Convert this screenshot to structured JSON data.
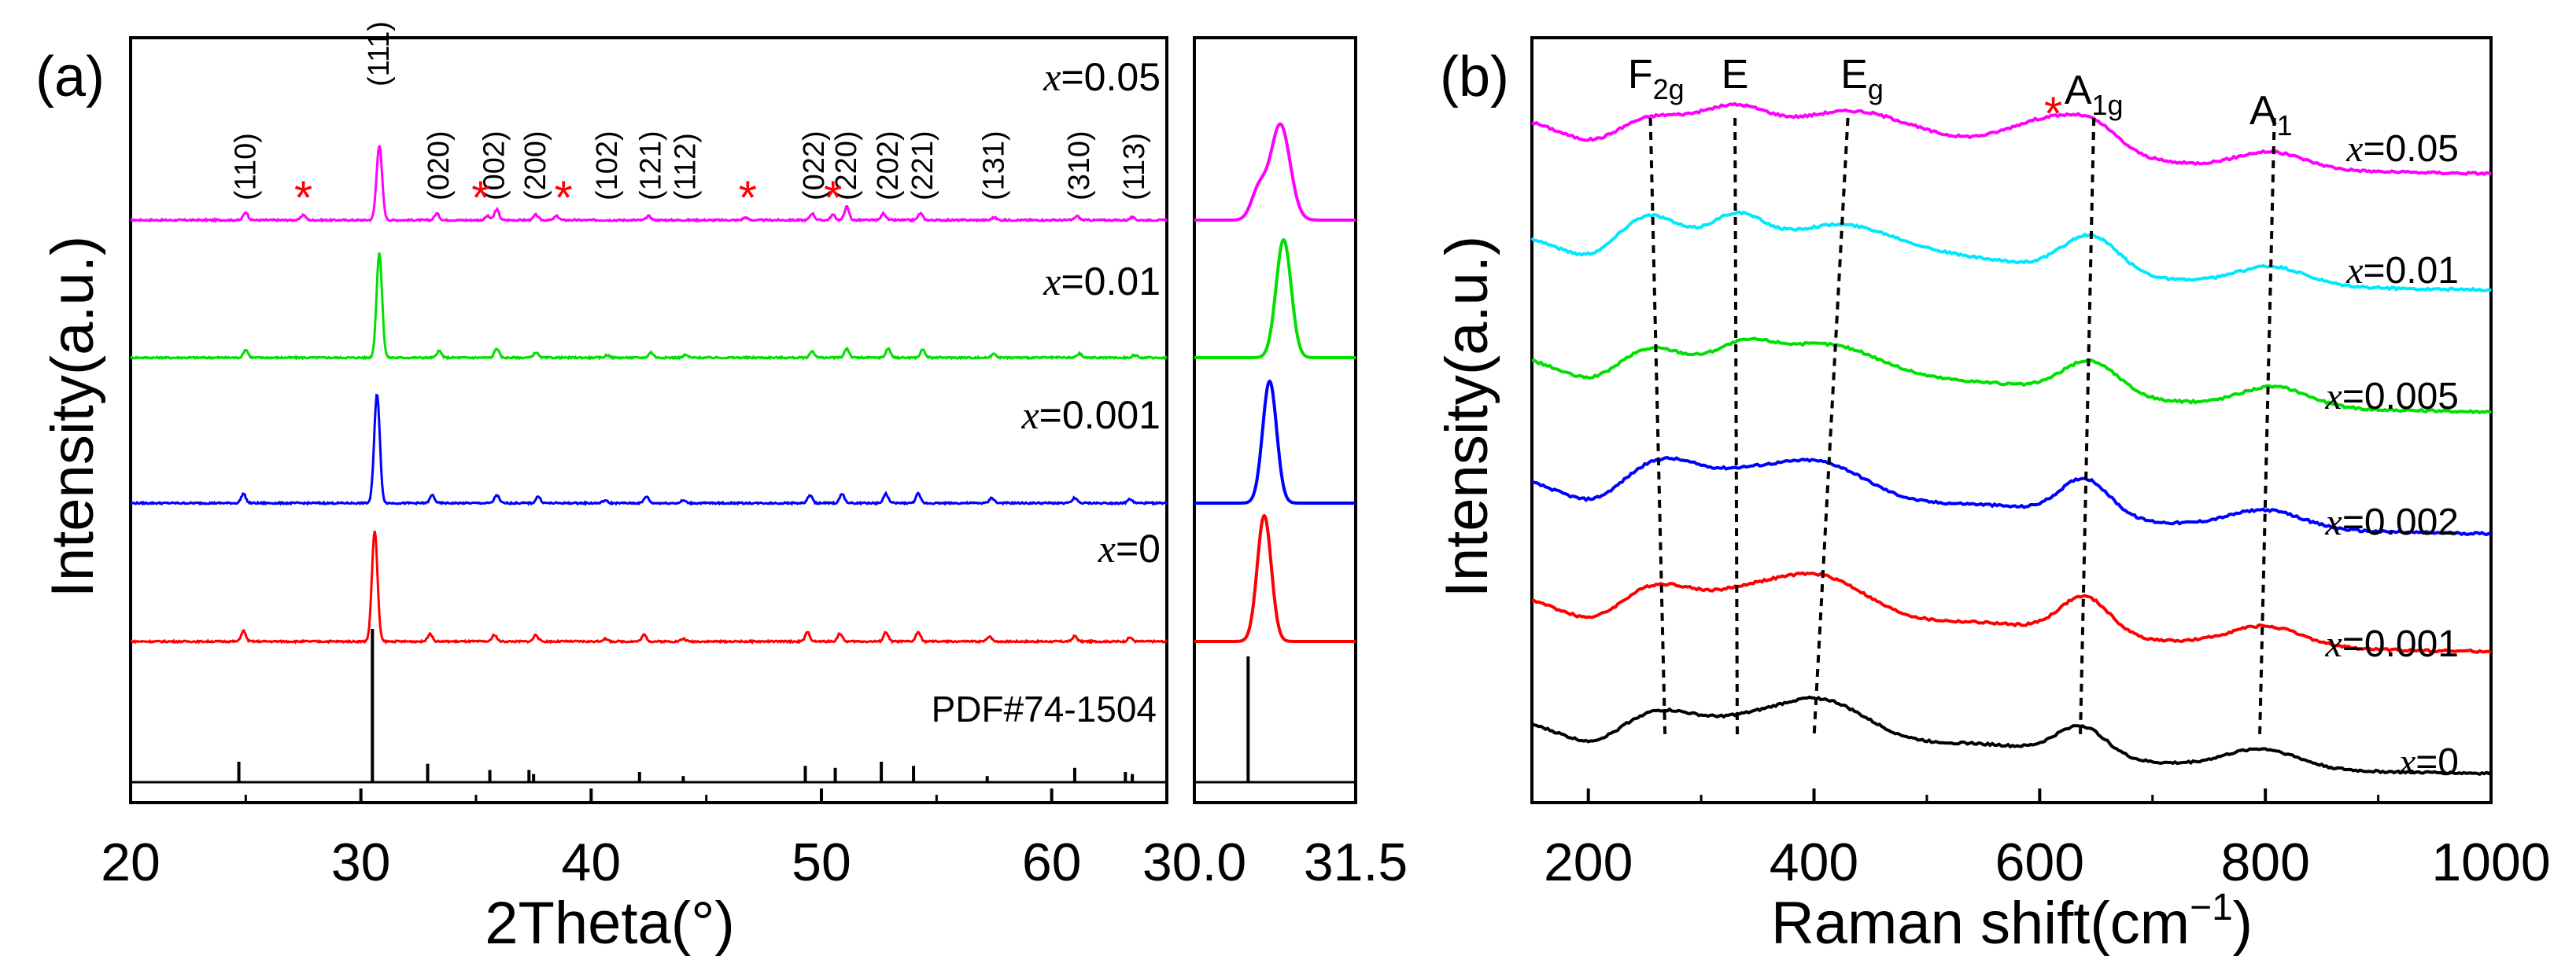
{
  "chart_data": [
    {
      "id": "xrd",
      "type": "line",
      "panel_label": "(a)",
      "xlabel": "2Theta(°)",
      "ylabel": "Intensity(a.u.)",
      "xlim": [
        20,
        65
      ],
      "xticks": [
        20,
        30,
        40,
        50,
        60
      ],
      "x_var": "x",
      "series": [
        {
          "name": "x=0.05",
          "value": "=0.05",
          "color": "#ff00ff",
          "peaks": [
            [
              25.0,
              0.06
            ],
            [
              27.5,
              0.04
            ],
            [
              30.8,
              0.56
            ],
            [
              33.3,
              0.05
            ],
            [
              35.5,
              0.03
            ],
            [
              35.9,
              0.08
            ],
            [
              37.6,
              0.04
            ],
            [
              38.5,
              0.03
            ],
            [
              42.5,
              0.03
            ],
            [
              46.7,
              0.02
            ],
            [
              49.6,
              0.05
            ],
            [
              50.5,
              0.04
            ],
            [
              51.1,
              0.1
            ],
            [
              52.7,
              0.05
            ],
            [
              54.3,
              0.05
            ],
            [
              57.5,
              0.02
            ],
            [
              61.1,
              0.03
            ],
            [
              63.5,
              0.02
            ]
          ]
        },
        {
          "name": "x=0.01",
          "value": "=0.01",
          "color": "#00e000",
          "peaks": [
            [
              25.0,
              0.06
            ],
            [
              30.8,
              0.78
            ],
            [
              33.4,
              0.05
            ],
            [
              35.9,
              0.07
            ],
            [
              37.6,
              0.04
            ],
            [
              40.7,
              0.02
            ],
            [
              42.6,
              0.04
            ],
            [
              44.1,
              0.02
            ],
            [
              49.6,
              0.05
            ],
            [
              51.1,
              0.07
            ],
            [
              52.9,
              0.07
            ],
            [
              54.4,
              0.06
            ],
            [
              57.5,
              0.03
            ],
            [
              61.2,
              0.03
            ],
            [
              63.6,
              0.02
            ]
          ]
        },
        {
          "name": "x=0.001",
          "value": "=0.001",
          "color": "#0000ff",
          "peaks": [
            [
              24.9,
              0.07
            ],
            [
              30.7,
              0.82
            ],
            [
              33.1,
              0.06
            ],
            [
              35.9,
              0.06
            ],
            [
              37.7,
              0.05
            ],
            [
              40.6,
              0.02
            ],
            [
              42.4,
              0.05
            ],
            [
              44.0,
              0.02
            ],
            [
              49.5,
              0.06
            ],
            [
              50.9,
              0.07
            ],
            [
              52.8,
              0.07
            ],
            [
              54.2,
              0.07
            ],
            [
              57.4,
              0.04
            ],
            [
              61.0,
              0.04
            ],
            [
              63.4,
              0.03
            ]
          ]
        },
        {
          "name": "x=0",
          "value": "=0",
          "color": "#ff0000",
          "peaks": [
            [
              24.9,
              0.08
            ],
            [
              30.6,
              0.83
            ],
            [
              33.0,
              0.06
            ],
            [
              35.8,
              0.05
            ],
            [
              37.6,
              0.05
            ],
            [
              40.6,
              0.02
            ],
            [
              42.3,
              0.05
            ],
            [
              44.0,
              0.02
            ],
            [
              49.4,
              0.07
            ],
            [
              50.8,
              0.06
            ],
            [
              52.8,
              0.07
            ],
            [
              54.2,
              0.07
            ],
            [
              57.3,
              0.04
            ],
            [
              61.0,
              0.04
            ],
            [
              63.4,
              0.03
            ]
          ]
        }
      ],
      "reference": {
        "name": "PDF#74-1504",
        "sticks": [
          [
            24.7,
            0.1
          ],
          [
            30.5,
            0.75
          ],
          [
            32.9,
            0.09
          ],
          [
            35.6,
            0.06
          ],
          [
            37.3,
            0.06
          ],
          [
            37.5,
            0.04
          ],
          [
            42.1,
            0.05
          ],
          [
            44.0,
            0.03
          ],
          [
            49.3,
            0.08
          ],
          [
            50.6,
            0.07
          ],
          [
            52.6,
            0.1
          ],
          [
            54.0,
            0.08
          ],
          [
            57.2,
            0.03
          ],
          [
            61.0,
            0.07
          ],
          [
            63.2,
            0.05
          ],
          [
            63.5,
            0.04
          ]
        ]
      },
      "hkl_labels": [
        {
          "label": "(110)",
          "x": 25.0
        },
        {
          "label": "(111)",
          "x": 30.8
        },
        {
          "label": "(020)",
          "x": 33.4
        },
        {
          "label": "(002)",
          "x": 35.8
        },
        {
          "label": "(200)",
          "x": 37.6
        },
        {
          "label": "(102)",
          "x": 40.7
        },
        {
          "label": "(121)",
          "x": 42.6
        },
        {
          "label": "(112)",
          "x": 44.1
        },
        {
          "label": "(022)",
          "x": 49.7
        },
        {
          "label": "(220)",
          "x": 51.1
        },
        {
          "label": "(202)",
          "x": 52.9
        },
        {
          "label": "(221)",
          "x": 54.4
        },
        {
          "label": "(131)",
          "x": 57.5
        },
        {
          "label": "(310)",
          "x": 61.2
        },
        {
          "label": "(113)",
          "x": 63.6
        }
      ],
      "impurity_markers": [
        {
          "label": "*",
          "x": 27.5
        },
        {
          "label": "*",
          "x": 35.2
        },
        {
          "label": "*",
          "x": 38.8
        },
        {
          "label": "*",
          "x": 46.8
        },
        {
          "label": "*",
          "x": 50.5
        }
      ]
    },
    {
      "id": "xrd-zoom",
      "type": "line",
      "xlim": [
        30.0,
        31.5
      ],
      "xticks": [
        30.0,
        31.5
      ],
      "tick_labels": [
        "30.0",
        "31.5"
      ],
      "series": [
        {
          "name": "x=0.05",
          "color": "#ff00ff",
          "center": 30.8,
          "width": 0.09
        },
        {
          "name": "x=0.01",
          "color": "#00e000",
          "center": 30.83,
          "width": 0.07
        },
        {
          "name": "x=0.001",
          "color": "#0000ff",
          "center": 30.7,
          "width": 0.065
        },
        {
          "name": "x=0",
          "color": "#ff0000",
          "center": 30.65,
          "width": 0.065
        }
      ],
      "reference_x": 30.5
    },
    {
      "id": "raman",
      "type": "line",
      "panel_label": "(b)",
      "xlabel": "Raman shift(cm",
      "xlabel_sup": "−1",
      "xlabel_end": ")",
      "ylabel": "Intensity(a.u.)",
      "xlim": [
        150,
        1000
      ],
      "xticks": [
        200,
        400,
        600,
        800,
        1000
      ],
      "x_var": "x",
      "series": [
        {
          "name": "x=0.05",
          "value": "=0.05",
          "color": "#ff00ff",
          "bands": [
            [
              260,
              0.3,
              35
            ],
            [
              330,
              0.38,
              30
            ],
            [
              430,
              0.45,
              55
            ],
            [
              540,
              0.08,
              60
            ],
            [
              615,
              0.4,
              40
            ],
            [
              650,
              0.15,
              20
            ],
            [
              805,
              0.18,
              30
            ]
          ]
        },
        {
          "name": "x=0.01",
          "value": "=0.01",
          "color": "#00e8ff",
          "bands": [
            [
              255,
              0.5,
              30
            ],
            [
              330,
              0.45,
              25
            ],
            [
              420,
              0.48,
              55
            ],
            [
              545,
              0.12,
              60
            ],
            [
              645,
              0.42,
              25
            ],
            [
              805,
              0.2,
              30
            ]
          ]
        },
        {
          "name": "x=0.005",
          "value": "=0.005",
          "color": "#00e000",
          "bands": [
            [
              258,
              0.38,
              32
            ],
            [
              335,
              0.35,
              28
            ],
            [
              410,
              0.5,
              50
            ],
            [
              545,
              0.12,
              60
            ],
            [
              645,
              0.38,
              25
            ],
            [
              808,
              0.22,
              30
            ]
          ]
        },
        {
          "name": "x=0.002",
          "value": "=0.002",
          "color": "#0000ff",
          "bands": [
            [
              268,
              0.5,
              35
            ],
            [
              335,
              0.22,
              30
            ],
            [
              402,
              0.55,
              45
            ],
            [
              545,
              0.12,
              60
            ],
            [
              640,
              0.42,
              22
            ],
            [
              800,
              0.2,
              32
            ]
          ]
        },
        {
          "name": "x=0.001",
          "value": "=0.001",
          "color": "#ff0000",
          "bands": [
            [
              265,
              0.42,
              35
            ],
            [
              335,
              0.22,
              30
            ],
            [
              402,
              0.6,
              45
            ],
            [
              545,
              0.12,
              60
            ],
            [
              640,
              0.42,
              22
            ],
            [
              800,
              0.22,
              32
            ]
          ]
        },
        {
          "name": "x=0",
          "value": "=0",
          "color": "#000000",
          "bands": [
            [
              265,
              0.4,
              35
            ],
            [
              330,
              0.18,
              30
            ],
            [
              402,
              0.62,
              45
            ],
            [
              545,
              0.14,
              60
            ],
            [
              637,
              0.35,
              22
            ],
            [
              797,
              0.22,
              32
            ]
          ]
        }
      ],
      "mode_labels": [
        {
          "name": "F2g",
          "base": "F",
          "sub": "2g",
          "x": 260
        },
        {
          "name": "E",
          "base": "E",
          "sub": "",
          "x": 330
        },
        {
          "name": "Eg",
          "base": "E",
          "sub": "g",
          "x": 430
        },
        {
          "name": "A1g",
          "base": "A",
          "sub": "1g",
          "x": 648
        },
        {
          "name": "A1",
          "base": "A",
          "sub": "1",
          "x": 805
        }
      ],
      "guide_lines": [
        {
          "name": "F2g-guide",
          "x_top": 255,
          "x_bottom": 268
        },
        {
          "name": "E-guide",
          "x_top": 330,
          "x_bottom": 332
        },
        {
          "name": "Eg-guide",
          "x_top": 430,
          "x_bottom": 400
        },
        {
          "name": "A1g-guide",
          "x_top": 648,
          "x_bottom": 636
        },
        {
          "name": "A1-guide",
          "x_top": 808,
          "x_bottom": 795
        }
      ],
      "impurity_markers": [
        {
          "label": "*",
          "x": 612
        }
      ]
    }
  ]
}
